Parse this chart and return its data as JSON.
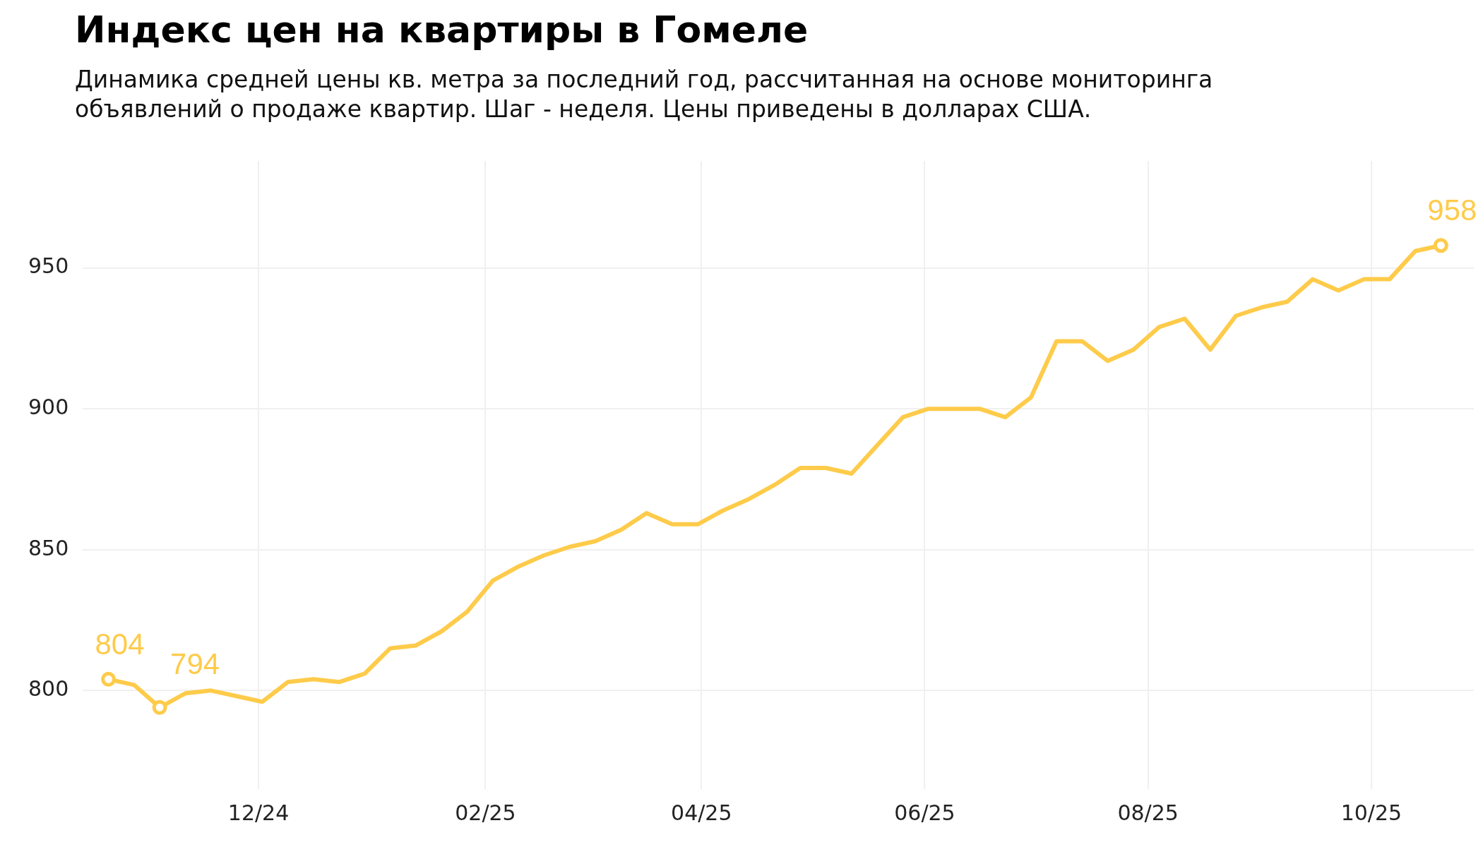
{
  "chart_data": {
    "type": "line",
    "title": "Индекс цен на квартиры в Гомеле",
    "subtitle": "Динамика средней цены кв. метра за последний год, рассчитанная на основе мониторинга объявлений о продаже квартир. Шаг - неделя. Цены приведены в долларах США.",
    "x": [
      "2024-10-21",
      "2024-10-28",
      "2024-11-04",
      "2024-11-11",
      "2024-11-18",
      "2024-11-25",
      "2024-12-02",
      "2024-12-09",
      "2024-12-16",
      "2024-12-23",
      "2024-12-30",
      "2025-01-06",
      "2025-01-13",
      "2025-01-20",
      "2025-01-27",
      "2025-02-03",
      "2025-02-10",
      "2025-02-17",
      "2025-02-24",
      "2025-03-03",
      "2025-03-10",
      "2025-03-17",
      "2025-03-24",
      "2025-03-31",
      "2025-04-07",
      "2025-04-14",
      "2025-04-21",
      "2025-04-28",
      "2025-05-05",
      "2025-05-12",
      "2025-05-19",
      "2025-05-26",
      "2025-06-02",
      "2025-06-09",
      "2025-06-16",
      "2025-06-23",
      "2025-06-30",
      "2025-07-07",
      "2025-07-14",
      "2025-07-21",
      "2025-07-28",
      "2025-08-04",
      "2025-08-11",
      "2025-08-18",
      "2025-08-25",
      "2025-09-01",
      "2025-09-08",
      "2025-09-15",
      "2025-09-22",
      "2025-09-29",
      "2025-10-06",
      "2025-10-13",
      "2025-10-20"
    ],
    "series": [
      {
        "color": "#fecb4a",
        "values": [
          804,
          802,
          794,
          799,
          800,
          798,
          796,
          803,
          804,
          803,
          806,
          815,
          816,
          821,
          828,
          839,
          844,
          848,
          851,
          853,
          857,
          863,
          859,
          859,
          864,
          868,
          873,
          879,
          879,
          877,
          887,
          897,
          900,
          900,
          900,
          897,
          904,
          924,
          924,
          917,
          921,
          929,
          932,
          921,
          933,
          936,
          938,
          946,
          942,
          946,
          946,
          956,
          958
        ],
        "value_labels": [
          "804",
          null,
          "794",
          null,
          null,
          null,
          null,
          null,
          null,
          null,
          null,
          null,
          null,
          null,
          null,
          null,
          null,
          null,
          null,
          null,
          null,
          null,
          null,
          null,
          null,
          null,
          null,
          null,
          null,
          null,
          null,
          null,
          null,
          null,
          null,
          null,
          null,
          null,
          null,
          null,
          null,
          null,
          null,
          null,
          null,
          null,
          null,
          null,
          null,
          null,
          null,
          null,
          "958"
        ]
      }
    ],
    "xlim": [
      "2024-10-14",
      "2025-10-29"
    ],
    "xticks": [
      {
        "value": "2024-12-01",
        "label": "12/24"
      },
      {
        "value": "2025-02-01",
        "label": "02/25"
      },
      {
        "value": "2025-04-01",
        "label": "04/25"
      },
      {
        "value": "2025-06-01",
        "label": "06/25"
      },
      {
        "value": "2025-08-01",
        "label": "08/25"
      },
      {
        "value": "2025-10-01",
        "label": "10/25"
      }
    ],
    "ylim": [
      765,
      988
    ],
    "yticks": [
      800,
      850,
      900,
      950
    ],
    "grid": true,
    "legend": false
  }
}
